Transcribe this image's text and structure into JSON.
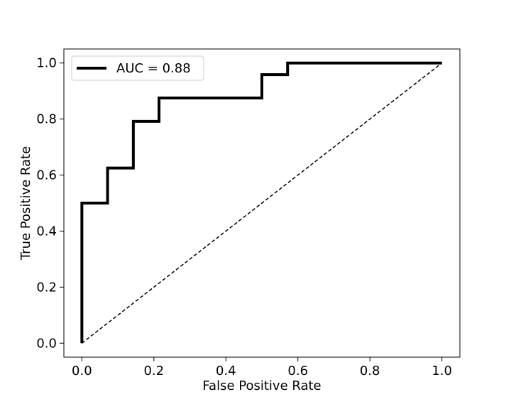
{
  "chart_data": {
    "type": "line",
    "title": "",
    "xlabel": "False Positive Rate",
    "ylabel": "True Positive Rate",
    "xlim": [
      -0.05,
      1.05
    ],
    "ylim": [
      -0.05,
      1.05
    ],
    "xticks": [
      0.0,
      0.2,
      0.4,
      0.6,
      0.8,
      1.0
    ],
    "yticks": [
      0.0,
      0.2,
      0.4,
      0.6,
      0.8,
      1.0
    ],
    "xtick_labels": [
      "0.0",
      "0.2",
      "0.4",
      "0.6",
      "0.8",
      "1.0"
    ],
    "ytick_labels": [
      "0.0",
      "0.2",
      "0.4",
      "0.6",
      "0.8",
      "1.0"
    ],
    "grid": false,
    "legend": {
      "placement": "top-left",
      "entries": [
        "AUC = 0.88"
      ]
    },
    "series": [
      {
        "name": "AUC = 0.88",
        "style": "solid",
        "color": "#000000",
        "x": [
          0.0,
          0.0,
          0.0714,
          0.0714,
          0.1429,
          0.1429,
          0.2143,
          0.2143,
          0.5,
          0.5,
          0.5714,
          0.5714,
          1.0
        ],
        "y": [
          0.0,
          0.5,
          0.5,
          0.625,
          0.625,
          0.7917,
          0.7917,
          0.875,
          0.875,
          0.9583,
          0.9583,
          1.0,
          1.0
        ]
      },
      {
        "style": "dashed",
        "color": "#000000",
        "x": [
          0.0,
          1.0
        ],
        "y": [
          0.0,
          1.0
        ]
      }
    ]
  }
}
